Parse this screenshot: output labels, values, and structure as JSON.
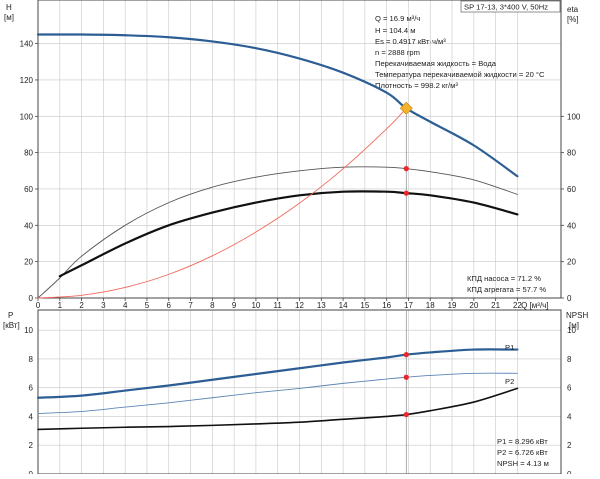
{
  "colors": {
    "head": "#2c5e95",
    "efficiency_pump": "#555555",
    "efficiency_unit": "#111111",
    "system_curve": "#f06a5a",
    "marker": "#e8262b",
    "op_point": "#f4b32c",
    "grid": "#c8c8c8",
    "power_p1": "#2c5e95",
    "power_p2": "#5d85b5",
    "npsh": "#111111"
  },
  "chart_data": [
    {
      "type": "line",
      "title": "SP 17-13, 3*400 V, 50Hz",
      "ylabel_left": [
        "H",
        "[м]"
      ],
      "ylabel_right": [
        "eta",
        "[%]"
      ],
      "xlabel": "Q [м³/ч]",
      "x_ticks": [
        "0",
        "1",
        "2",
        "3",
        "4",
        "5",
        "6",
        "7",
        "8",
        "9",
        "10",
        "11",
        "12",
        "13",
        "14",
        "15",
        "16",
        "17",
        "18",
        "19",
        "20",
        "21",
        "22"
      ],
      "y_ticks_left": [
        "0",
        "20",
        "40",
        "60",
        "80",
        "100",
        "120",
        "140"
      ],
      "y_ticks_right": [
        "0",
        "20",
        "40",
        "60",
        "80",
        "100"
      ],
      "xlim": [
        0,
        24
      ],
      "ylim": [
        0,
        164
      ],
      "grid": true,
      "series": [
        {
          "name": "H",
          "x": [
            0,
            2,
            4,
            6,
            8,
            10,
            12,
            14,
            16,
            16.9,
            18,
            20,
            22
          ],
          "y": [
            145,
            145,
            144.6,
            143.5,
            141.2,
            137.5,
            131.8,
            124,
            113,
            104.4,
            97,
            84,
            67
          ]
        },
        {
          "name": "КПД насоса",
          "x": [
            0,
            1,
            2,
            4,
            6,
            8,
            10,
            12,
            14,
            16,
            16.9,
            18,
            20,
            22
          ],
          "y": [
            0,
            11,
            23,
            40,
            52.5,
            61,
            66.5,
            70,
            72,
            72,
            71.2,
            69.5,
            65,
            57
          ]
        },
        {
          "name": "КПД агрегата",
          "x": [
            1,
            2,
            4,
            6,
            8,
            10,
            12,
            14,
            16,
            16.9,
            18,
            20,
            22
          ],
          "y": [
            12,
            18,
            30,
            40,
            47,
            52.5,
            56.5,
            58.5,
            58.5,
            57.7,
            56.5,
            52.5,
            46
          ]
        },
        {
          "name": "system",
          "x": [
            0,
            2,
            4,
            6,
            8,
            10,
            12,
            14,
            16,
            16.9
          ],
          "y": [
            0,
            1.5,
            5.8,
            13,
            23.2,
            36.3,
            52.2,
            71.1,
            93.1,
            104.4
          ]
        }
      ],
      "operating_point": {
        "x": 16.9,
        "y": 104.4
      },
      "markers": [
        {
          "x": 16.9,
          "y": 71.2
        },
        {
          "x": 16.9,
          "y": 57.7
        }
      ],
      "info": {
        "flow": "Q = 16.9 м³/ч",
        "head": "H = 104.4 м",
        "energy": "Es = 0.4917 кВт·ч/м³",
        "speed": "n = 2888 rpm",
        "liquid": "Перекачиваемая жидкость = Вода",
        "temperature": "Температура перекачиваемой жидкости = 20 °C",
        "density": "Плотность = 998.2 кг/м³"
      },
      "efficiency_labels": {
        "pump": "КПД насоса = 71.2 %",
        "unit": "КПД агрегата = 57.7 %"
      }
    },
    {
      "type": "line",
      "ylabel_left": [
        "P",
        "[кВт]"
      ],
      "ylabel_right": [
        "NPSH",
        "[м]"
      ],
      "y_ticks_left": [
        "0",
        "2",
        "4",
        "6",
        "8",
        "10"
      ],
      "y_ticks_right": [
        "0",
        "2",
        "4",
        "6",
        "8",
        "10"
      ],
      "xlim": [
        0,
        24
      ],
      "ylim": [
        0,
        11.4
      ],
      "grid": true,
      "series": [
        {
          "name": "P1",
          "x": [
            0,
            2,
            4,
            6,
            8,
            10,
            12,
            14,
            16,
            16.9,
            18,
            20,
            22
          ],
          "y": [
            5.3,
            5.45,
            5.8,
            6.15,
            6.55,
            6.95,
            7.35,
            7.75,
            8.1,
            8.296,
            8.45,
            8.65,
            8.65
          ]
        },
        {
          "name": "P2",
          "x": [
            0,
            2,
            4,
            6,
            8,
            10,
            12,
            14,
            16,
            16.9,
            18,
            20,
            22
          ],
          "y": [
            4.2,
            4.35,
            4.65,
            4.95,
            5.3,
            5.65,
            5.95,
            6.3,
            6.6,
            6.726,
            6.85,
            7.0,
            7.0
          ]
        },
        {
          "name": "NPSH",
          "x": [
            0,
            2,
            4,
            6,
            8,
            10,
            12,
            14,
            16,
            16.9,
            18,
            20,
            22
          ],
          "y": [
            3.1,
            3.18,
            3.25,
            3.3,
            3.38,
            3.48,
            3.6,
            3.8,
            4.0,
            4.13,
            4.4,
            5.0,
            5.95
          ]
        }
      ],
      "markers": [
        {
          "x": 16.9,
          "y": 8.296
        },
        {
          "x": 16.9,
          "y": 6.726
        },
        {
          "x": 16.9,
          "y": 4.13
        }
      ],
      "curve_labels": {
        "p1": "P1",
        "p2": "P2"
      },
      "info": {
        "p1": "P1 = 8.296 кВт",
        "p2": "P2 = 6.726 кВт",
        "npsh": "NPSH = 4.13 м"
      }
    }
  ]
}
